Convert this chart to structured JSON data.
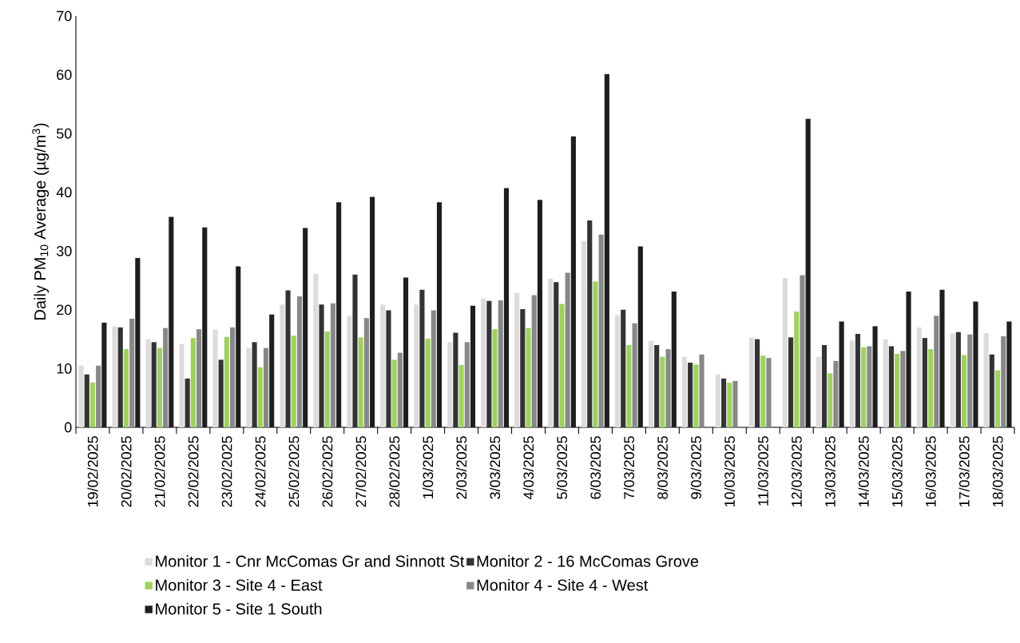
{
  "chart_data": {
    "type": "bar",
    "ylabel": "Daily PM$_{10}$ Average (µg/m$^{3}$)",
    "categories": [
      "19/02/2025",
      "20/02/2025",
      "21/02/2025",
      "22/02/2025",
      "23/02/2025",
      "24/02/2025",
      "25/02/2025",
      "26/02/2025",
      "27/02/2025",
      "28/02/2025",
      "1/03/2025",
      "2/03/2025",
      "3/03/2025",
      "4/03/2025",
      "5/03/2025",
      "6/03/2025",
      "7/03/2025",
      "8/03/2025",
      "9/03/2025",
      "10/03/2025",
      "11/03/2025",
      "12/03/2025",
      "13/03/2025",
      "14/03/2025",
      "15/03/2025",
      "16/03/2025",
      "17/03/2025",
      "18/03/2025"
    ],
    "series": [
      {
        "name": "Monitor 1 - Cnr McComas Gr and Sinnott St",
        "color": "#dcdcdc",
        "values": [
          10.5,
          17.2,
          15,
          14.2,
          16.6,
          13.5,
          20.9,
          26.1,
          19,
          20.9,
          20.9,
          14.5,
          21.9,
          22.9,
          25.3,
          31.7,
          19.1,
          14.7,
          12,
          9,
          15.3,
          25.4,
          12,
          14.8,
          15,
          17,
          16,
          16
        ]
      },
      {
        "name": "Monitor 2 - 16 McComas Grove",
        "color": "#333333",
        "values": [
          9,
          17,
          14.5,
          8.3,
          11.5,
          14.5,
          23.3,
          20.9,
          26,
          19.9,
          23.4,
          16.1,
          21.5,
          20.1,
          24.7,
          35.2,
          20,
          14,
          11,
          8.3,
          15,
          15.3,
          14,
          15.9,
          13.8,
          15.2,
          16.2,
          12.4
        ]
      },
      {
        "name": "Monitor 3 - Site 4 - East",
        "color": "#a0d060",
        "values": [
          7.6,
          13.3,
          13.5,
          15.2,
          15.4,
          10.2,
          15.6,
          16.3,
          15.3,
          11.5,
          15.1,
          10.6,
          16.7,
          16.9,
          21,
          24.8,
          14,
          12,
          10.7,
          7.6,
          12.2,
          19.7,
          9.2,
          13.6,
          12.5,
          13.3,
          12.3,
          9.7
        ]
      },
      {
        "name": "Monitor 4 - Site 4 - West",
        "color": "#888888",
        "values": [
          10.5,
          18.5,
          16.9,
          16.7,
          17,
          13.5,
          22.3,
          21.1,
          18.6,
          12.7,
          19.9,
          14.5,
          21.6,
          22.5,
          26.3,
          32.8,
          17.7,
          13.3,
          12.4,
          7.9,
          11.8,
          25.9,
          11.3,
          13.8,
          13,
          19,
          15.8,
          15.5
        ]
      },
      {
        "name": "Monitor 5 - Site 1 South",
        "color": "#1e1e1e",
        "values": [
          17.8,
          28.8,
          35.8,
          34,
          27.4,
          19.2,
          33.9,
          38.3,
          39.2,
          25.5,
          38.3,
          20.7,
          40.7,
          38.7,
          49.5,
          60.1,
          30.8,
          23.1,
          null,
          null,
          null,
          52.5,
          18,
          17.2,
          23.1,
          23.4,
          21.4,
          18
        ]
      }
    ],
    "ylim": [
      0,
      70
    ],
    "yticks": [
      0,
      10,
      20,
      30,
      40,
      50,
      60,
      70
    ],
    "grid": false,
    "legend": "bottom"
  }
}
